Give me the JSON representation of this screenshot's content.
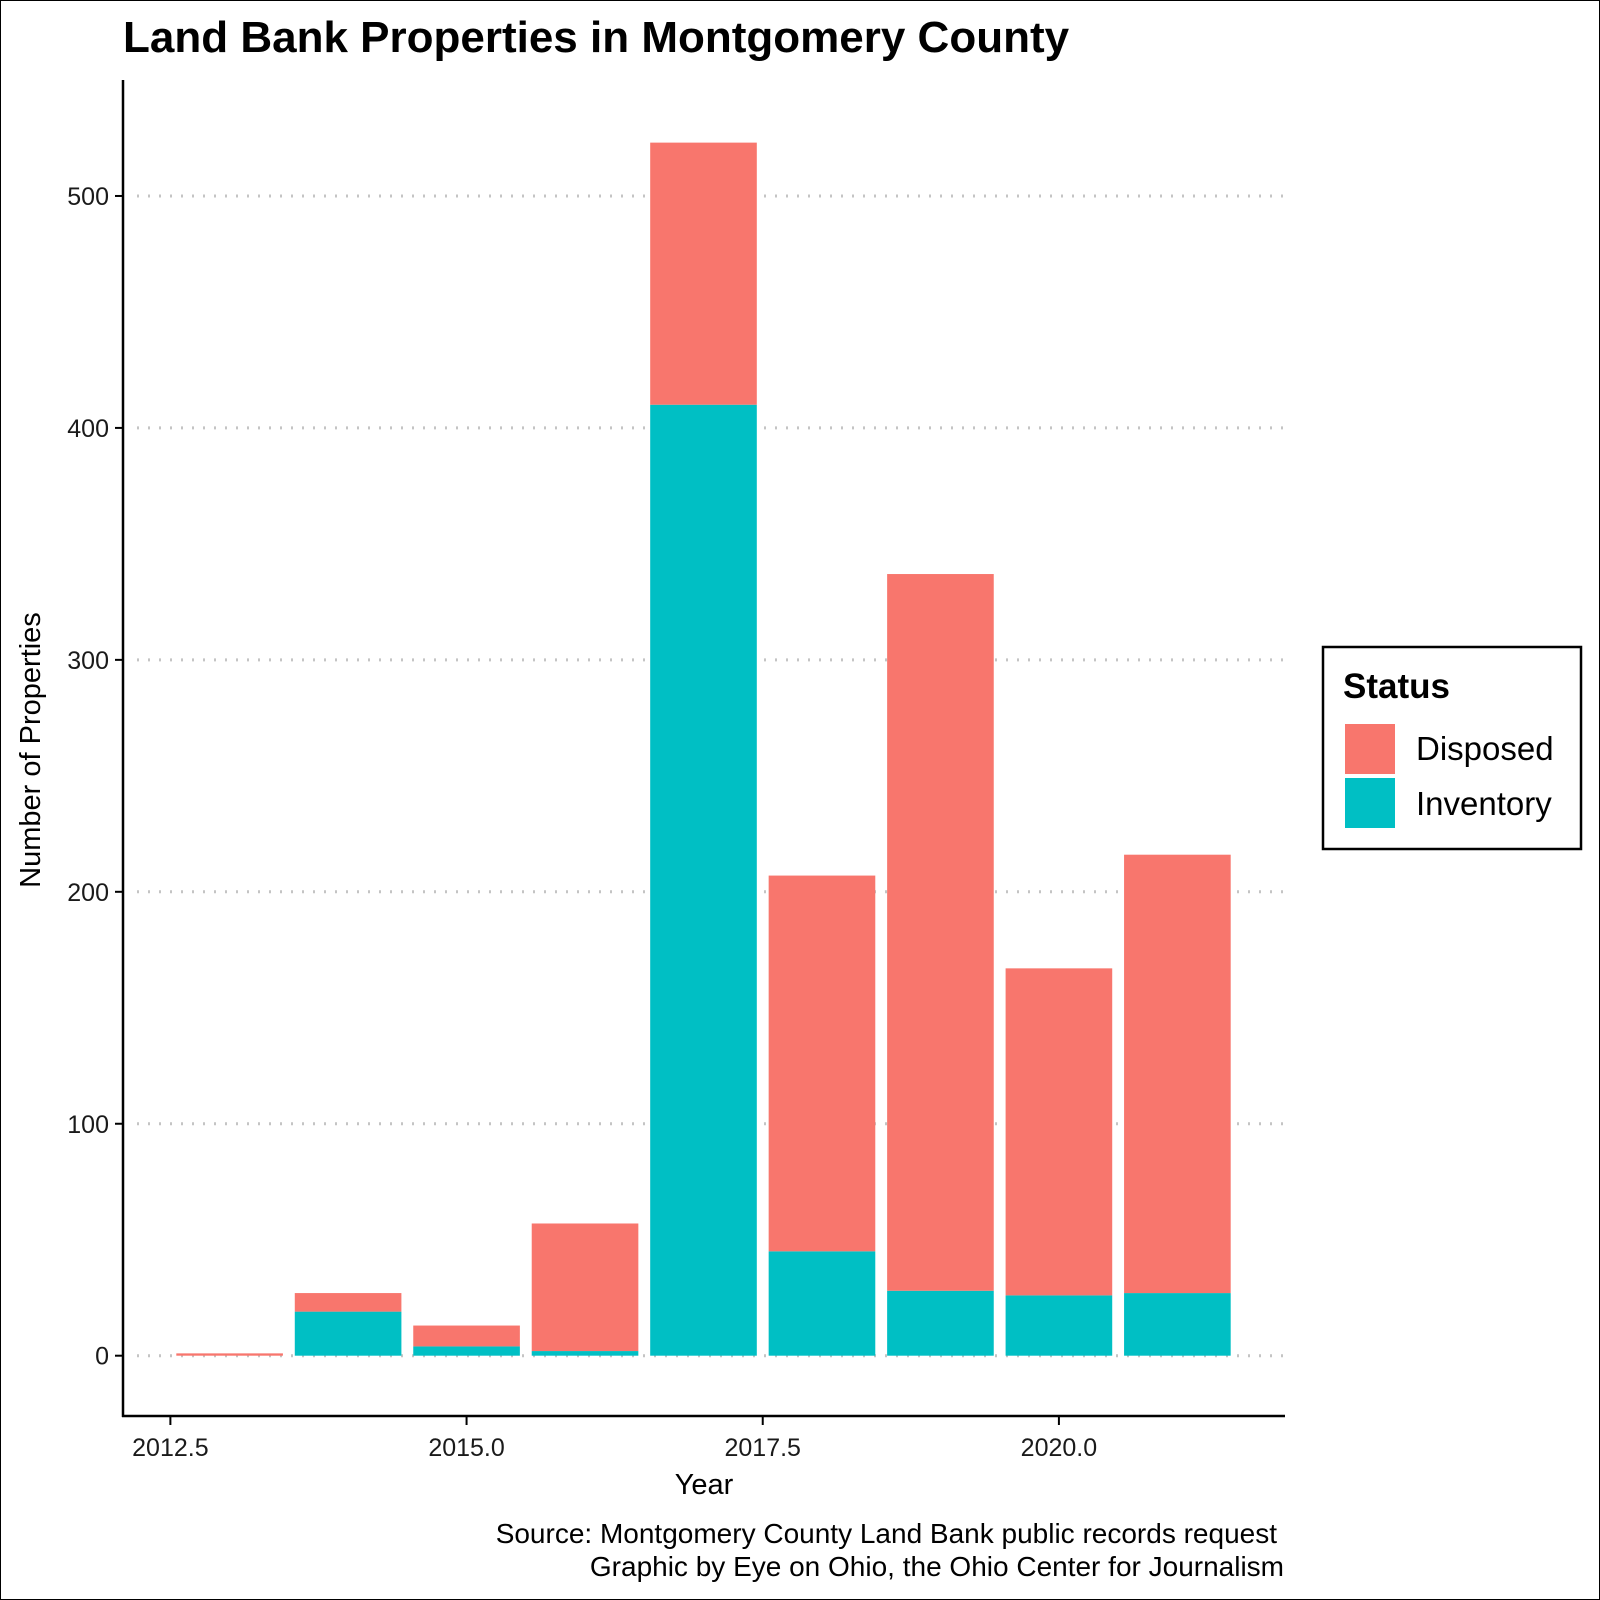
{
  "chart_data": {
    "type": "bar",
    "stacked": true,
    "title": "Land Bank Properties in Montgomery County",
    "xlabel": "Year",
    "ylabel": "Number of Properties",
    "x": [
      2013,
      2014,
      2015,
      2016,
      2017,
      2018,
      2019,
      2020,
      2021
    ],
    "series": [
      {
        "name": "Inventory",
        "color": "#00BFC4",
        "values": [
          0,
          19,
          4,
          2,
          410,
          45,
          28,
          26,
          27
        ]
      },
      {
        "name": "Disposed",
        "color": "#F8766D",
        "values": [
          1,
          8,
          9,
          55,
          113,
          162,
          309,
          141,
          189
        ]
      }
    ],
    "xlim": [
      2012.1,
      2021.9
    ],
    "ylim": [
      -26,
      550
    ],
    "x_ticks": [
      2012.5,
      2015.0,
      2017.5,
      2020.0
    ],
    "x_tick_labels": [
      "2012.5",
      "2015.0",
      "2017.5",
      "2020.0"
    ],
    "y_ticks": [
      0,
      100,
      200,
      300,
      400,
      500
    ],
    "y_tick_labels": [
      "0",
      "100",
      "200",
      "300",
      "400",
      "500"
    ],
    "grid": "horizontal-dotted",
    "legend": {
      "title": "Status",
      "placement": "right",
      "items": [
        {
          "label": "Disposed",
          "color": "#F8766D"
        },
        {
          "label": "Inventory",
          "color": "#00BFC4"
        }
      ]
    },
    "caption_lines": [
      "Source: Montgomery County Land Bank public records request",
      "Graphic by Eye on Ohio, the Ohio Center for Journalism"
    ]
  }
}
